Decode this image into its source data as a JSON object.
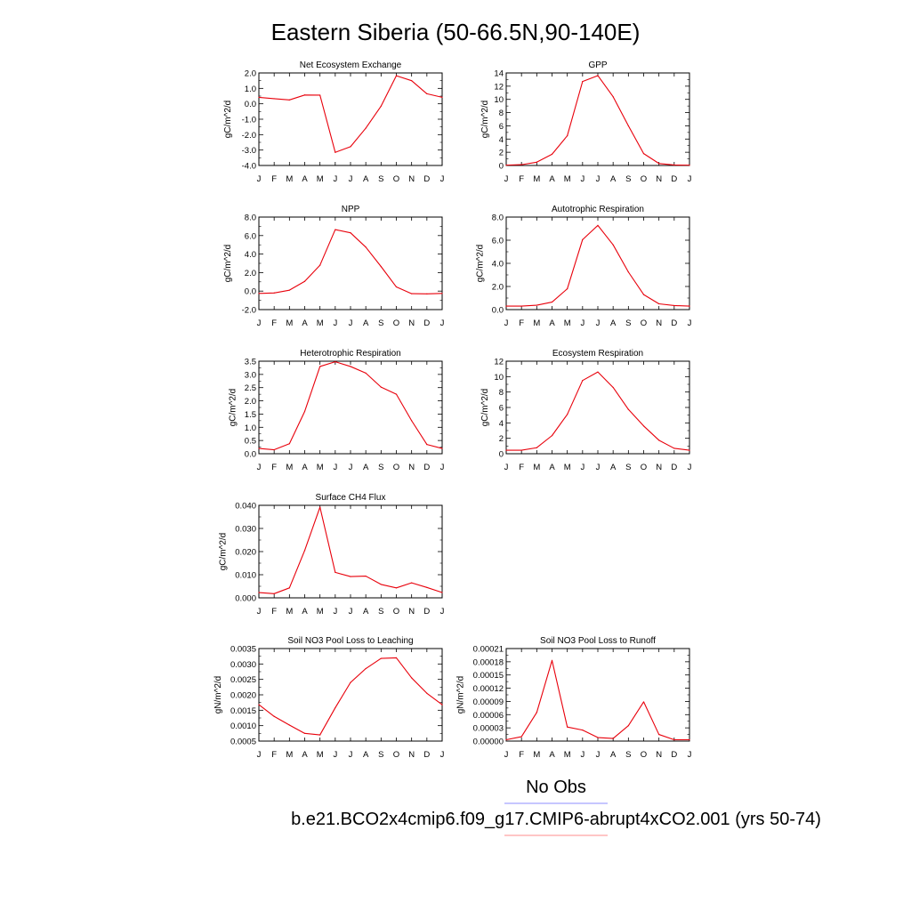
{
  "figure": {
    "title": "Eastern Siberia (50-66.5N,90-140E)",
    "legend": [
      {
        "label": "No Obs",
        "color": "#8c8cff"
      },
      {
        "label": "b.e21.BCO2x4cmip6.f09_g17.CMIP6-abrupt4xCO2.001 (yrs 50-74)",
        "color": "#ff8c8c"
      }
    ]
  },
  "chart_data": [
    {
      "type": "line",
      "title": "Net Ecosystem Exchange",
      "ylabel": "gC/m^2/d",
      "xlabel": "",
      "categories": [
        "J",
        "F",
        "M",
        "A",
        "M",
        "J",
        "J",
        "A",
        "S",
        "O",
        "N",
        "D",
        "J"
      ],
      "ylim": [
        -4.0,
        2.0
      ],
      "yticks": [
        2.0,
        1.0,
        0.0,
        -1.0,
        -2.0,
        -3.0,
        -4.0
      ],
      "ytick_labels": [
        "2.0",
        "1.0",
        "0.0",
        "-1.0",
        "-2.0",
        "-3.0",
        "-4.0"
      ],
      "color": "#e8000b",
      "series": [
        {
          "values": [
            0.42,
            0.33,
            0.25,
            0.57,
            0.56,
            -3.15,
            -2.78,
            -1.58,
            -0.15,
            1.82,
            1.5,
            0.65,
            0.42
          ]
        }
      ]
    },
    {
      "type": "line",
      "title": "GPP",
      "ylabel": "gC/m^2/d",
      "xlabel": "",
      "categories": [
        "J",
        "F",
        "M",
        "A",
        "M",
        "J",
        "J",
        "A",
        "S",
        "O",
        "N",
        "D",
        "J"
      ],
      "ylim": [
        0,
        14
      ],
      "yticks": [
        14,
        12,
        10,
        8,
        6,
        4,
        2,
        0
      ],
      "ytick_labels": [
        "14",
        "12",
        "10",
        "8",
        "6",
        "4",
        "2",
        "0"
      ],
      "color": "#e8000b",
      "series": [
        {
          "values": [
            0.05,
            0.12,
            0.5,
            1.7,
            4.5,
            12.7,
            13.6,
            10.4,
            6.0,
            1.8,
            0.3,
            0.07,
            0.05
          ]
        }
      ]
    },
    {
      "type": "line",
      "title": "NPP",
      "ylabel": "gC/m^2/d",
      "xlabel": "",
      "categories": [
        "J",
        "F",
        "M",
        "A",
        "M",
        "J",
        "J",
        "A",
        "S",
        "O",
        "N",
        "D",
        "J"
      ],
      "ylim": [
        -2.0,
        8.0
      ],
      "yticks": [
        8.0,
        6.0,
        4.0,
        2.0,
        0.0,
        -2.0
      ],
      "ytick_labels": [
        "8.0",
        "6.0",
        "4.0",
        "2.0",
        "0.0",
        "-2.0"
      ],
      "color": "#e8000b",
      "series": [
        {
          "values": [
            -0.25,
            -0.2,
            0.1,
            1.05,
            2.8,
            6.65,
            6.3,
            4.75,
            2.65,
            0.45,
            -0.28,
            -0.3,
            -0.25
          ]
        }
      ]
    },
    {
      "type": "line",
      "title": "Autotrophic Respiration",
      "ylabel": "gC/m^2/d",
      "xlabel": "",
      "categories": [
        "J",
        "F",
        "M",
        "A",
        "M",
        "J",
        "J",
        "A",
        "S",
        "O",
        "N",
        "D",
        "J"
      ],
      "ylim": [
        0,
        8.0
      ],
      "yticks": [
        8.0,
        6.0,
        4.0,
        2.0,
        0.0
      ],
      "ytick_labels": [
        "8.0",
        "6.0",
        "4.0",
        "2.0",
        "0.0"
      ],
      "color": "#e8000b",
      "series": [
        {
          "values": [
            0.3,
            0.3,
            0.38,
            0.65,
            1.8,
            6.05,
            7.28,
            5.6,
            3.25,
            1.3,
            0.5,
            0.35,
            0.3
          ]
        }
      ]
    },
    {
      "type": "line",
      "title": "Heterotrophic Respiration",
      "ylabel": "gC/m^2/d",
      "xlabel": "",
      "categories": [
        "J",
        "F",
        "M",
        "A",
        "M",
        "J",
        "J",
        "A",
        "S",
        "O",
        "N",
        "D",
        "J"
      ],
      "ylim": [
        0,
        3.5
      ],
      "yticks": [
        3.5,
        3.0,
        2.5,
        2.0,
        1.5,
        1.0,
        0.5,
        0.0
      ],
      "ytick_labels": [
        "3.5",
        "3.0",
        "2.5",
        "2.0",
        "1.5",
        "1.0",
        "0.5",
        "0.0"
      ],
      "color": "#e8000b",
      "series": [
        {
          "values": [
            0.2,
            0.15,
            0.38,
            1.6,
            3.3,
            3.48,
            3.3,
            3.05,
            2.52,
            2.25,
            1.25,
            0.35,
            0.2
          ]
        }
      ]
    },
    {
      "type": "line",
      "title": "Ecosystem Respiration",
      "ylabel": "gC/m^2/d",
      "xlabel": "",
      "categories": [
        "J",
        "F",
        "M",
        "A",
        "M",
        "J",
        "J",
        "A",
        "S",
        "O",
        "N",
        "D",
        "J"
      ],
      "ylim": [
        0,
        12
      ],
      "yticks": [
        12,
        10,
        8,
        6,
        4,
        2,
        0
      ],
      "ytick_labels": [
        "12",
        "10",
        "8",
        "6",
        "4",
        "2",
        "0"
      ],
      "color": "#e8000b",
      "series": [
        {
          "values": [
            0.45,
            0.45,
            0.78,
            2.35,
            5.1,
            9.5,
            10.6,
            8.6,
            5.75,
            3.6,
            1.75,
            0.7,
            0.45
          ]
        }
      ]
    },
    {
      "type": "line",
      "title": "Surface CH4 Flux",
      "ylabel": "gC/m^2/d",
      "xlabel": "",
      "categories": [
        "J",
        "F",
        "M",
        "A",
        "M",
        "J",
        "J",
        "A",
        "S",
        "O",
        "N",
        "D",
        "J"
      ],
      "ylim": [
        0,
        0.04
      ],
      "yticks": [
        0.04,
        0.03,
        0.02,
        0.01,
        0.0
      ],
      "ytick_labels": [
        "0.040",
        "0.030",
        "0.020",
        "0.010",
        "0.000"
      ],
      "color": "#e8000b",
      "series": [
        {
          "values": [
            0.0023,
            0.0018,
            0.0043,
            0.0205,
            0.0392,
            0.011,
            0.0092,
            0.0094,
            0.0058,
            0.0043,
            0.0065,
            0.0045,
            0.0023
          ]
        }
      ]
    },
    {
      "type": "line",
      "title": "Soil NO3 Pool Loss to Leaching",
      "ylabel": "gN/m^2/d",
      "xlabel": "",
      "categories": [
        "J",
        "F",
        "M",
        "A",
        "M",
        "J",
        "J",
        "A",
        "S",
        "O",
        "N",
        "D",
        "J"
      ],
      "ylim": [
        0.0005,
        0.0035
      ],
      "yticks": [
        0.0035,
        0.003,
        0.0025,
        0.002,
        0.0015,
        0.001,
        0.0005
      ],
      "ytick_labels": [
        "0.0035",
        "0.0030",
        "0.0025",
        "0.0020",
        "0.0015",
        "0.0010",
        "0.0005"
      ],
      "color": "#e8000b",
      "series": [
        {
          "values": [
            0.00168,
            0.0013,
            0.00102,
            0.00075,
            0.0007,
            0.00158,
            0.0024,
            0.00285,
            0.00318,
            0.0032,
            0.00255,
            0.00205,
            0.00168
          ]
        }
      ]
    },
    {
      "type": "line",
      "title": "Soil NO3 Pool Loss to Runoff",
      "ylabel": "gN/m^2/d",
      "xlabel": "",
      "categories": [
        "J",
        "F",
        "M",
        "A",
        "M",
        "J",
        "J",
        "A",
        "S",
        "O",
        "N",
        "D",
        "J"
      ],
      "ylim": [
        0,
        0.00021
      ],
      "yticks": [
        0.00021,
        0.00018,
        0.00015,
        0.00012,
        9e-05,
        6e-05,
        3e-05,
        0.0
      ],
      "ytick_labels": [
        "0.00021",
        "0.00018",
        "0.00015",
        "0.00012",
        "0.00009",
        "0.00006",
        "0.00003",
        "0.00000"
      ],
      "color": "#e8000b",
      "series": [
        {
          "values": [
            3e-06,
            1e-05,
            6.5e-05,
            0.000183,
            3.2e-05,
            2.5e-05,
            8e-06,
            6e-06,
            3.5e-05,
            8.9e-05,
            1.5e-05,
            3e-06,
            3e-06
          ]
        }
      ]
    }
  ]
}
